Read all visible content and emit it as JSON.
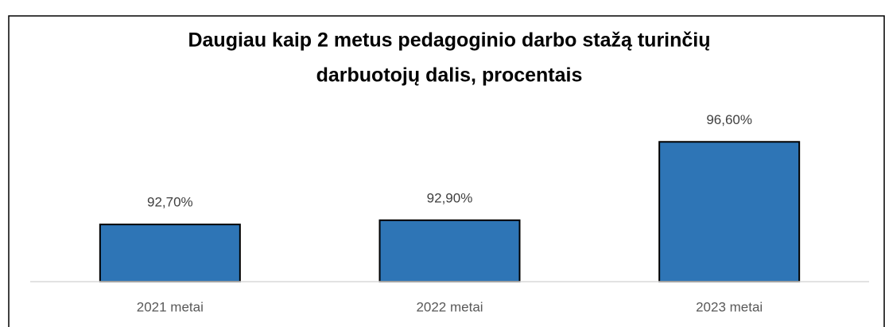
{
  "chart_data": {
    "type": "bar",
    "title": [
      "Daugiau kaip 2 metus pedagoginio darbo stažą turinčių",
      "darbuotojų dalis, procentais"
    ],
    "categories": [
      "2021 metai",
      "2022 metai",
      "2023 metai"
    ],
    "values": [
      92.7,
      92.9,
      96.6
    ],
    "value_labels": [
      "92,70%",
      "92,90%",
      "96,60%"
    ],
    "color": "#2e75b6",
    "ylim": [
      90,
      98
    ]
  }
}
